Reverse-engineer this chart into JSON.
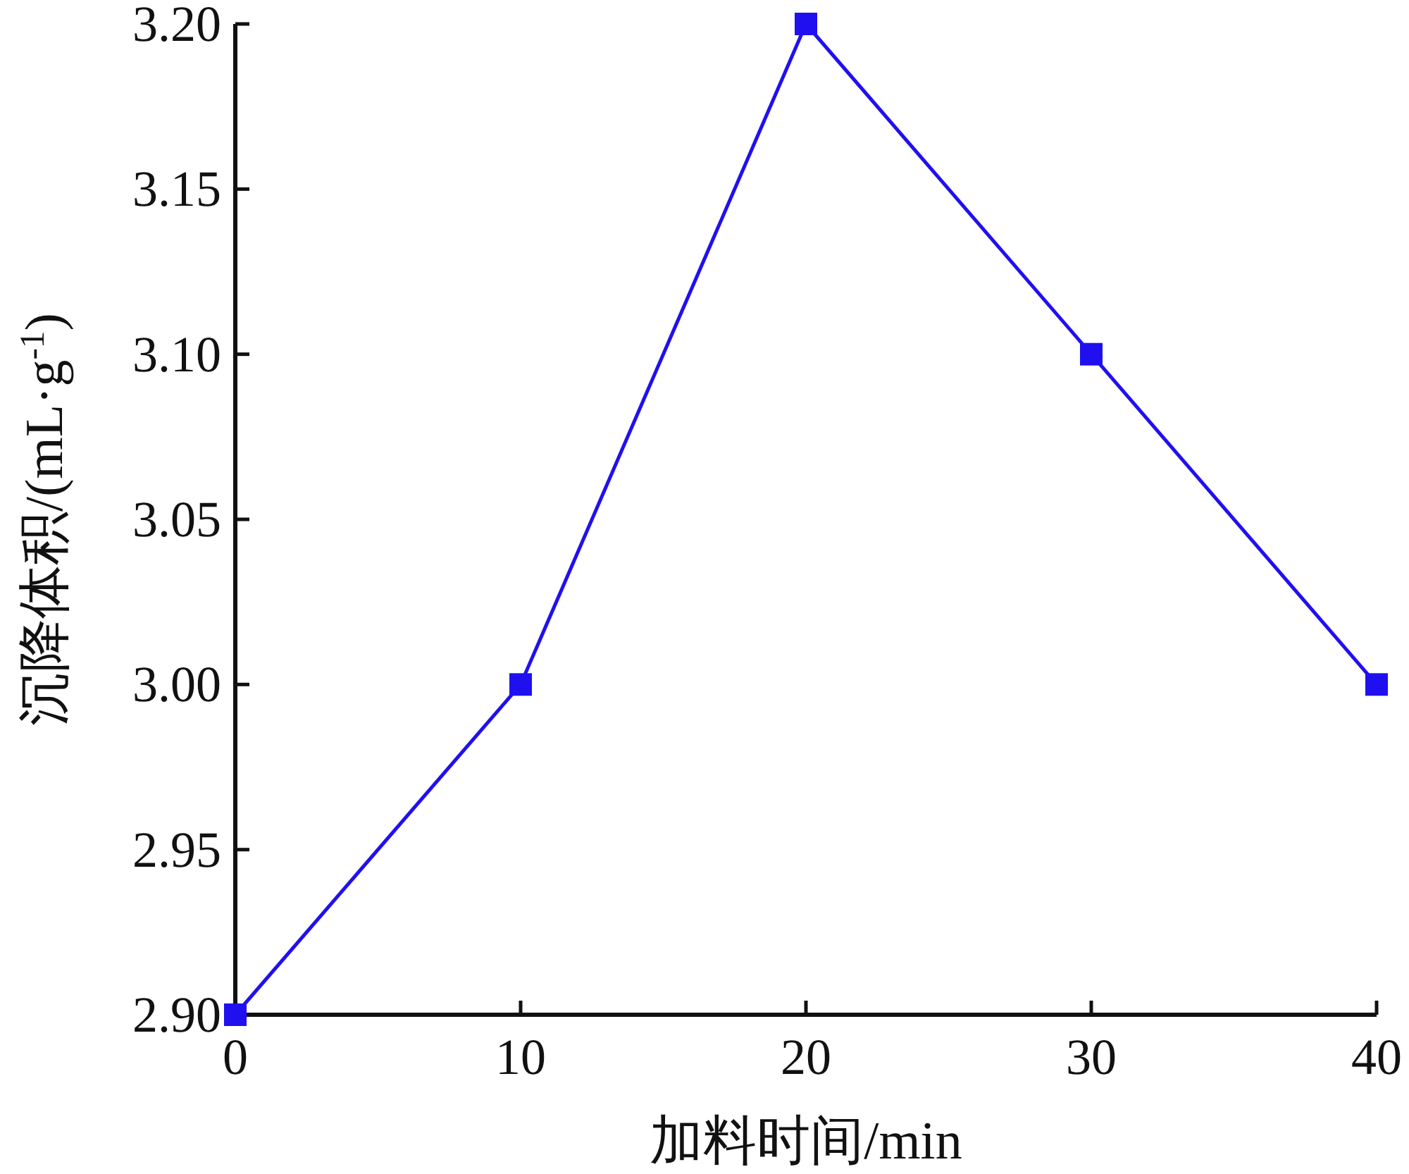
{
  "chart_data": {
    "type": "line",
    "xlabel": "加料时间/min",
    "ylabel": "沉降体积/(mL·g$^{-1}$)",
    "x": [
      0,
      10,
      20,
      30,
      40
    ],
    "series": [
      {
        "color": "#2010f0",
        "values": [
          2.9,
          3.0,
          3.2,
          3.1,
          3.0
        ]
      }
    ],
    "xlim": [
      0,
      40
    ],
    "ylim": [
      2.9,
      3.2
    ],
    "xticks": [
      0,
      10,
      20,
      30,
      40
    ],
    "yticks": [
      {
        "value": 2.9,
        "label": "2.90"
      },
      {
        "value": 2.95,
        "label": "2.95"
      },
      {
        "value": 3.0,
        "label": "3.00"
      },
      {
        "value": 3.05,
        "label": "3.05"
      },
      {
        "value": 3.1,
        "label": "3.10"
      },
      {
        "value": 3.15,
        "label": "3.15"
      },
      {
        "value": 3.2,
        "label": "3.20"
      }
    ],
    "marker": "square",
    "line_style": "solid"
  }
}
